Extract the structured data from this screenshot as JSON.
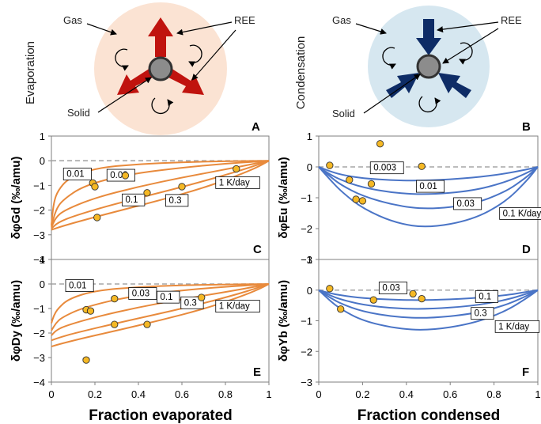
{
  "figure": {
    "top_panels": [
      {
        "id": "A",
        "process": "Evaporation",
        "gas_label": "Gas",
        "ree_label": "REE",
        "solid_label": "Solid",
        "bg_color": "#fbe3d3",
        "arrow_color": "#c0130e",
        "direction": "outward"
      },
      {
        "id": "B",
        "process": "Condensation",
        "gas_label": "Gas",
        "ree_label": "REE",
        "solid_label": "Solid",
        "bg_color": "#d6e7f0",
        "arrow_color": "#0e2c66",
        "direction": "inward"
      }
    ],
    "x_axis_labels": {
      "left": "Fraction evaporated",
      "right": "Fraction condensed"
    }
  },
  "chart_data": [
    {
      "id": "C",
      "type": "line",
      "ylabel": "δφGd (‰/amu)",
      "xlim": [
        0,
        1
      ],
      "ylim": [
        -4,
        1
      ],
      "xticks": [],
      "yticks": [
        "1",
        "0",
        "−1",
        "−2",
        "−3",
        "−4"
      ],
      "line_color": "#e88a3c",
      "point_color": "#f5b824",
      "dashed_zero": true,
      "series": [
        {
          "name": "0.01",
          "x": [
            0,
            0.01,
            0.03,
            0.08,
            0.2,
            0.4,
            0.6,
            0.8,
            0.95,
            1
          ],
          "y": [
            -2.6,
            -1.7,
            -1.2,
            -0.7,
            -0.3,
            -0.13,
            -0.06,
            -0.02,
            -0.005,
            0
          ]
        },
        {
          "name": "0.03",
          "x": [
            0,
            0.02,
            0.05,
            0.15,
            0.35,
            0.6,
            0.8,
            0.95,
            1
          ],
          "y": [
            -2.65,
            -2.0,
            -1.6,
            -1.0,
            -0.55,
            -0.28,
            -0.12,
            -0.03,
            0
          ]
        },
        {
          "name": "0.1",
          "x": [
            0,
            0.02,
            0.06,
            0.2,
            0.4,
            0.6,
            0.8,
            0.95,
            1
          ],
          "y": [
            -2.7,
            -2.3,
            -2.0,
            -1.5,
            -1.05,
            -0.68,
            -0.35,
            -0.09,
            0
          ]
        },
        {
          "name": "0.3",
          "x": [
            0,
            0.03,
            0.1,
            0.25,
            0.45,
            0.65,
            0.85,
            0.95,
            1
          ],
          "y": [
            -2.75,
            -2.5,
            -2.25,
            -1.85,
            -1.4,
            -0.95,
            -0.45,
            -0.16,
            0
          ]
        },
        {
          "name": "1 K/day",
          "x": [
            0,
            0.05,
            0.15,
            0.3,
            0.5,
            0.7,
            0.85,
            0.95,
            1
          ],
          "y": [
            -2.8,
            -2.65,
            -2.4,
            -2.05,
            -1.6,
            -1.1,
            -0.62,
            -0.25,
            0
          ]
        }
      ],
      "points": {
        "x": [
          0.19,
          0.2,
          0.34,
          0.21,
          0.44,
          0.6,
          0.85
        ],
        "y": [
          -0.9,
          -1.05,
          -0.6,
          -2.3,
          -1.3,
          -1.05,
          -0.33
        ]
      }
    },
    {
      "id": "D",
      "type": "line",
      "ylabel": "δφEu (‰/amu)",
      "xlim": [
        0,
        1
      ],
      "ylim": [
        -3,
        1
      ],
      "xticks": [],
      "yticks": [
        "1",
        "0",
        "−1",
        "−2",
        "−3"
      ],
      "line_color": "#4a74c6",
      "point_color": "#f5b824",
      "dashed_zero": true,
      "series": [
        {
          "name": "0.003",
          "x": [
            0,
            0.05,
            0.1,
            0.2,
            0.35,
            0.5,
            0.7,
            0.85,
            0.95,
            1
          ],
          "y": [
            0,
            -0.14,
            -0.25,
            -0.37,
            -0.44,
            -0.44,
            -0.36,
            -0.22,
            -0.08,
            0
          ]
        },
        {
          "name": "0.01",
          "x": [
            0,
            0.05,
            0.1,
            0.2,
            0.35,
            0.5,
            0.7,
            0.85,
            0.95,
            1
          ],
          "y": [
            0,
            -0.24,
            -0.42,
            -0.67,
            -0.85,
            -0.9,
            -0.78,
            -0.5,
            -0.2,
            0
          ]
        },
        {
          "name": "0.03",
          "x": [
            0,
            0.05,
            0.1,
            0.2,
            0.35,
            0.5,
            0.7,
            0.85,
            0.95,
            1
          ],
          "y": [
            0,
            -0.3,
            -0.58,
            -0.95,
            -1.25,
            -1.38,
            -1.22,
            -0.82,
            -0.33,
            0
          ]
        },
        {
          "name": "0.1 K/day",
          "x": [
            0,
            0.05,
            0.1,
            0.2,
            0.35,
            0.5,
            0.7,
            0.85,
            0.95,
            1
          ],
          "y": [
            0,
            -0.4,
            -0.78,
            -1.35,
            -1.82,
            -1.98,
            -1.72,
            -1.15,
            -0.45,
            0
          ]
        }
      ],
      "points": {
        "x": [
          0.05,
          0.14,
          0.17,
          0.2,
          0.24,
          0.28,
          0.47
        ],
        "y": [
          0.05,
          -0.42,
          -1.05,
          -1.1,
          -0.55,
          0.75,
          0.02
        ]
      }
    },
    {
      "id": "E",
      "type": "line",
      "ylabel": "δφDy (‰/amu)",
      "xlim": [
        0,
        1
      ],
      "ylim": [
        -4,
        1
      ],
      "xticks": [
        "0",
        "0.2",
        "0.4",
        "0.6",
        "0.8",
        "1"
      ],
      "yticks": [
        "1",
        "0",
        "−1",
        "−2",
        "−3",
        "−4"
      ],
      "line_color": "#e88a3c",
      "point_color": "#f5b824",
      "dashed_zero": true,
      "series": [
        {
          "name": "0.01",
          "x": [
            0,
            0.01,
            0.03,
            0.08,
            0.2,
            0.4,
            0.6,
            0.8,
            0.95,
            1
          ],
          "y": [
            -1.6,
            -1.3,
            -1.0,
            -0.6,
            -0.27,
            -0.12,
            -0.05,
            -0.02,
            -0.005,
            0
          ]
        },
        {
          "name": "0.03",
          "x": [
            0,
            0.02,
            0.05,
            0.15,
            0.35,
            0.6,
            0.8,
            0.95,
            1
          ],
          "y": [
            -1.9,
            -1.6,
            -1.35,
            -0.95,
            -0.52,
            -0.26,
            -0.11,
            -0.03,
            0
          ]
        },
        {
          "name": "0.1",
          "x": [
            0,
            0.02,
            0.06,
            0.2,
            0.4,
            0.6,
            0.8,
            0.95,
            1
          ],
          "y": [
            -2.1,
            -1.9,
            -1.72,
            -1.35,
            -0.95,
            -0.62,
            -0.33,
            -0.09,
            0
          ]
        },
        {
          "name": "0.3",
          "x": [
            0,
            0.03,
            0.1,
            0.25,
            0.45,
            0.65,
            0.85,
            0.95,
            1
          ],
          "y": [
            -2.3,
            -2.2,
            -2.02,
            -1.7,
            -1.3,
            -0.9,
            -0.43,
            -0.15,
            0
          ]
        },
        {
          "name": "1 K/day",
          "x": [
            0,
            0.05,
            0.15,
            0.3,
            0.5,
            0.7,
            0.85,
            0.95,
            1
          ],
          "y": [
            -2.55,
            -2.42,
            -2.2,
            -1.9,
            -1.48,
            -1.02,
            -0.58,
            -0.23,
            0
          ]
        }
      ],
      "points": {
        "x": [
          0.16,
          0.18,
          0.29,
          0.29,
          0.44,
          0.69,
          0.16
        ],
        "y": [
          -1.05,
          -1.1,
          -0.6,
          -1.65,
          -1.65,
          -0.55,
          -3.1
        ]
      }
    },
    {
      "id": "F",
      "type": "line",
      "ylabel": "δφYb (‰/amu)",
      "xlim": [
        0,
        1
      ],
      "ylim": [
        -3,
        1
      ],
      "xticks": [
        "0",
        "0.2",
        "0.4",
        "0.6",
        "0.8",
        "1"
      ],
      "yticks": [
        "1",
        "0",
        "−1",
        "−2",
        "−3"
      ],
      "line_color": "#4a74c6",
      "point_color": "#f5b824",
      "dashed_zero": true,
      "series": [
        {
          "name": "0.03",
          "x": [
            0,
            0.05,
            0.1,
            0.2,
            0.35,
            0.5,
            0.7,
            0.85,
            0.95,
            1
          ],
          "y": [
            0,
            -0.1,
            -0.17,
            -0.26,
            -0.32,
            -0.33,
            -0.27,
            -0.17,
            -0.06,
            0
          ]
        },
        {
          "name": "0.1",
          "x": [
            0,
            0.05,
            0.1,
            0.2,
            0.35,
            0.5,
            0.7,
            0.85,
            0.95,
            1
          ],
          "y": [
            0,
            -0.17,
            -0.3,
            -0.48,
            -0.6,
            -0.62,
            -0.52,
            -0.33,
            -0.12,
            0
          ]
        },
        {
          "name": "0.3",
          "x": [
            0,
            0.05,
            0.1,
            0.2,
            0.35,
            0.5,
            0.7,
            0.85,
            0.95,
            1
          ],
          "y": [
            0,
            -0.24,
            -0.44,
            -0.7,
            -0.88,
            -0.92,
            -0.78,
            -0.5,
            -0.19,
            0
          ]
        },
        {
          "name": "1 K/day",
          "x": [
            0,
            0.05,
            0.1,
            0.2,
            0.35,
            0.5,
            0.7,
            0.85,
            0.95,
            1
          ],
          "y": [
            0,
            -0.34,
            -0.62,
            -1.0,
            -1.25,
            -1.32,
            -1.1,
            -0.7,
            -0.26,
            0
          ]
        }
      ],
      "points": {
        "x": [
          0.05,
          0.1,
          0.25,
          0.43,
          0.47
        ],
        "y": [
          0.05,
          -0.62,
          -0.32,
          -0.12,
          -0.28
        ]
      }
    }
  ]
}
